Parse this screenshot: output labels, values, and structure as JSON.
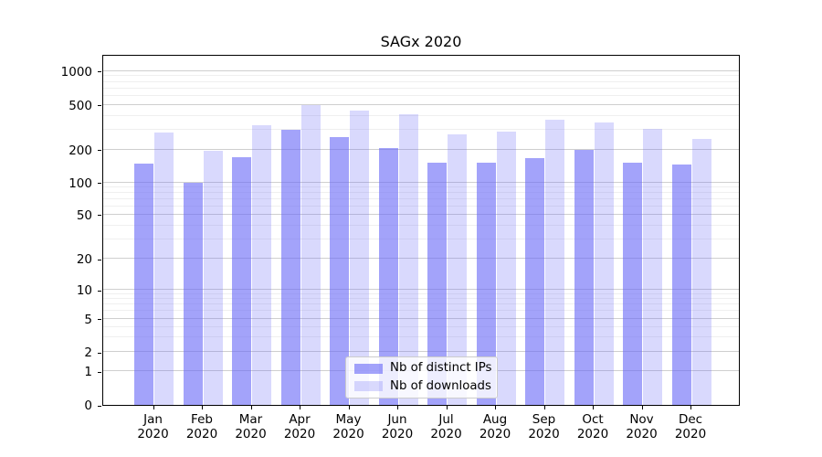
{
  "chart_data": {
    "type": "bar",
    "title": "SAGx 2020",
    "x_categories_month": [
      "Jan",
      "Feb",
      "Mar",
      "Apr",
      "May",
      "Jun",
      "Jul",
      "Aug",
      "Sep",
      "Oct",
      "Nov",
      "Dec"
    ],
    "x_categories_year": "2020",
    "series": [
      {
        "name": "Nb of distinct IPs",
        "color": "rgba(102,102,246,0.60)",
        "values": [
          150,
          100,
          172,
          300,
          260,
          208,
          152,
          152,
          168,
          198,
          152,
          146
        ]
      },
      {
        "name": "Nb of downloads",
        "color": "rgba(102,102,246,0.25)",
        "values": [
          282,
          196,
          330,
          500,
          448,
          413,
          273,
          290,
          366,
          350,
          307,
          249
        ]
      }
    ],
    "y_axis": {
      "scale": "symlog",
      "ticks": [
        0,
        1,
        2,
        5,
        10,
        20,
        50,
        100,
        200,
        500,
        1000
      ],
      "minor_per_decade": [
        3,
        4,
        6,
        7,
        8,
        9
      ],
      "ylim": [
        0,
        1400
      ]
    },
    "grid": {
      "horizontal": true,
      "major_color": "#cfcfcf",
      "minor_color": "#efefef"
    },
    "legend_position": "lower-center-inside",
    "bar_base_color": "#6666f6"
  }
}
